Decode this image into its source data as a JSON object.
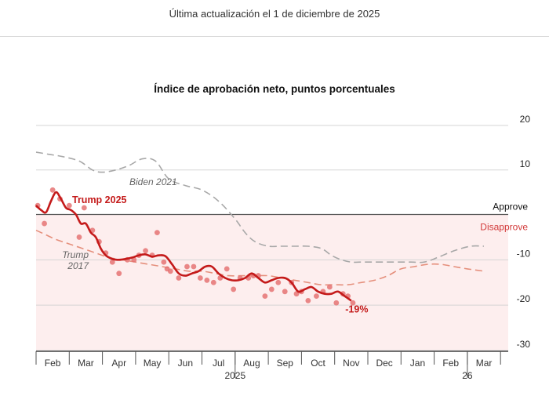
{
  "header": {
    "updated_text": "Última actualización el 1 de diciembre de 2025"
  },
  "chart_data": {
    "type": "line",
    "title": "Índice de aprobación neto, puntos porcentuales",
    "ylim": [
      -30,
      20
    ],
    "y_ticks": [
      {
        "value": 20,
        "label": "20"
      },
      {
        "value": 10,
        "label": "10"
      },
      {
        "value": -10,
        "label": "-10"
      },
      {
        "value": -20,
        "label": "-20"
      },
      {
        "value": -30,
        "label": "-30"
      }
    ],
    "x_months": [
      "Feb",
      "Mar",
      "Apr",
      "May",
      "Jun",
      "Jul",
      "Aug",
      "Sep",
      "Oct",
      "Nov",
      "Dec",
      "Jan",
      "Feb",
      "Mar"
    ],
    "x_year_labels": [
      {
        "after_month_index": 5,
        "label": "2025"
      },
      {
        "after_month_index": 12,
        "label": "26"
      }
    ],
    "zones": {
      "approve_label": "Approve",
      "disapprove_label": "Disapprove"
    },
    "colors": {
      "trump2025": "#c41a1a",
      "trump2017": "#e58f7c",
      "biden2021": "#a8a8a8",
      "disapprove_zone": "#fdeeee",
      "zone_label": "#d23a3a"
    },
    "series": [
      {
        "name": "Biden 2021",
        "label": "Biden 2021",
        "x": [
          0,
          0.4,
          0.8,
          1.3,
          1.7,
          2.0,
          2.4,
          2.8,
          3.2,
          3.6,
          4.0,
          4.5,
          5.0,
          5.5,
          6.0,
          6.3,
          6.6,
          7.0,
          7.4,
          7.8,
          8.2,
          8.6,
          8.9,
          9.2,
          9.5,
          9.8,
          10.1,
          10.5,
          10.9,
          11.3,
          11.7,
          12.1,
          12.6,
          13.1,
          13.5
        ],
        "values": [
          14,
          13.5,
          13,
          12,
          10,
          9.5,
          10,
          11,
          12.5,
          12,
          8,
          6.5,
          5.5,
          3,
          -1,
          -4,
          -6,
          -7,
          -7,
          -7,
          -7,
          -7.5,
          -9,
          -10,
          -10.5,
          -10.5,
          -10.5,
          -10.5,
          -10.5,
          -10.5,
          -10.5,
          -9.5,
          -8,
          -7,
          -7
        ]
      },
      {
        "name": "Trump 2017",
        "label": "Trump 2017",
        "x": [
          0,
          0.3,
          0.6,
          1.0,
          1.4,
          1.8,
          2.2,
          2.6,
          3.0,
          3.4,
          3.8,
          4.2,
          4.6,
          5.0,
          5.4,
          5.8,
          6.2,
          6.6,
          7.0,
          7.4,
          7.8,
          8.2,
          8.6,
          9.0,
          9.4,
          9.8,
          10.2,
          10.6,
          11.0,
          11.4,
          11.8,
          12.2,
          12.6,
          13.0,
          13.5
        ],
        "values": [
          -3.5,
          -4.5,
          -5.5,
          -6.5,
          -7.5,
          -8.5,
          -9.5,
          -10,
          -10.5,
          -11,
          -11.5,
          -12,
          -12.5,
          -12.5,
          -13,
          -13.5,
          -13.5,
          -13.5,
          -13.5,
          -14,
          -14.5,
          -15,
          -15.5,
          -15.5,
          -15.5,
          -15,
          -14.5,
          -13.5,
          -12,
          -11.5,
          -11,
          -11,
          -11.5,
          -12,
          -12.5
        ]
      },
      {
        "name": "Trump 2025",
        "label": "Trump 2025",
        "end_label": "-19%",
        "x": [
          0,
          0.15,
          0.3,
          0.45,
          0.6,
          0.75,
          0.9,
          1.05,
          1.2,
          1.35,
          1.5,
          1.65,
          1.8,
          1.95,
          2.1,
          2.3,
          2.5,
          2.7,
          2.9,
          3.1,
          3.3,
          3.5,
          3.7,
          3.9,
          4.1,
          4.3,
          4.5,
          4.7,
          4.9,
          5.1,
          5.3,
          5.5,
          5.7,
          5.9,
          6.1,
          6.3,
          6.5,
          6.7,
          6.9,
          7.1,
          7.3,
          7.5,
          7.7,
          7.9,
          8.1,
          8.3,
          8.5,
          8.7,
          8.9,
          9.1,
          9.3,
          9.5
        ],
        "values": [
          2,
          1,
          0.5,
          3,
          5,
          3.5,
          1.5,
          1,
          0,
          -2,
          -2,
          -4,
          -5,
          -7.5,
          -9,
          -9.8,
          -10,
          -9.8,
          -9.5,
          -9,
          -8.8,
          -9.3,
          -9,
          -9.2,
          -11,
          -13,
          -13.5,
          -13,
          -12.5,
          -11.5,
          -11.5,
          -13,
          -14,
          -14.5,
          -14.5,
          -14,
          -13,
          -14,
          -15,
          -14.5,
          -14,
          -14,
          -15,
          -17,
          -16.5,
          -16,
          -17,
          -17.5,
          -17.5,
          -17,
          -18,
          -19
        ]
      }
    ],
    "poll_points": {
      "x": [
        0.05,
        0.25,
        0.5,
        0.72,
        1.0,
        1.3,
        1.45,
        1.7,
        1.9,
        2.1,
        2.3,
        2.5,
        2.75,
        2.95,
        3.1,
        3.3,
        3.5,
        3.65,
        3.85,
        3.95,
        4.05,
        4.3,
        4.55,
        4.75,
        4.95,
        5.15,
        5.35,
        5.55,
        5.75,
        5.95,
        6.15,
        6.4,
        6.55,
        6.7,
        6.9,
        7.1,
        7.3,
        7.5,
        7.7,
        7.85,
        8.0,
        8.2,
        8.45,
        8.65,
        8.85,
        9.05,
        9.25,
        9.4,
        9.55
      ],
      "values": [
        2,
        -2,
        5.5,
        3.5,
        2,
        -5,
        1.5,
        -3.5,
        -6,
        -8.5,
        -10.5,
        -13,
        -10,
        -10,
        -9,
        -8,
        -9,
        -4,
        -10.5,
        -12,
        -12.5,
        -14,
        -11.5,
        -11.5,
        -14,
        -14.5,
        -15,
        -14,
        -12,
        -16.5,
        -14,
        -14,
        -13.5,
        -13.5,
        -18,
        -16.5,
        -15,
        -17,
        -15,
        -17.5,
        -17,
        -19,
        -18,
        -17,
        -16,
        -19.5,
        -17.5,
        -18,
        -19.5
      ]
    }
  }
}
